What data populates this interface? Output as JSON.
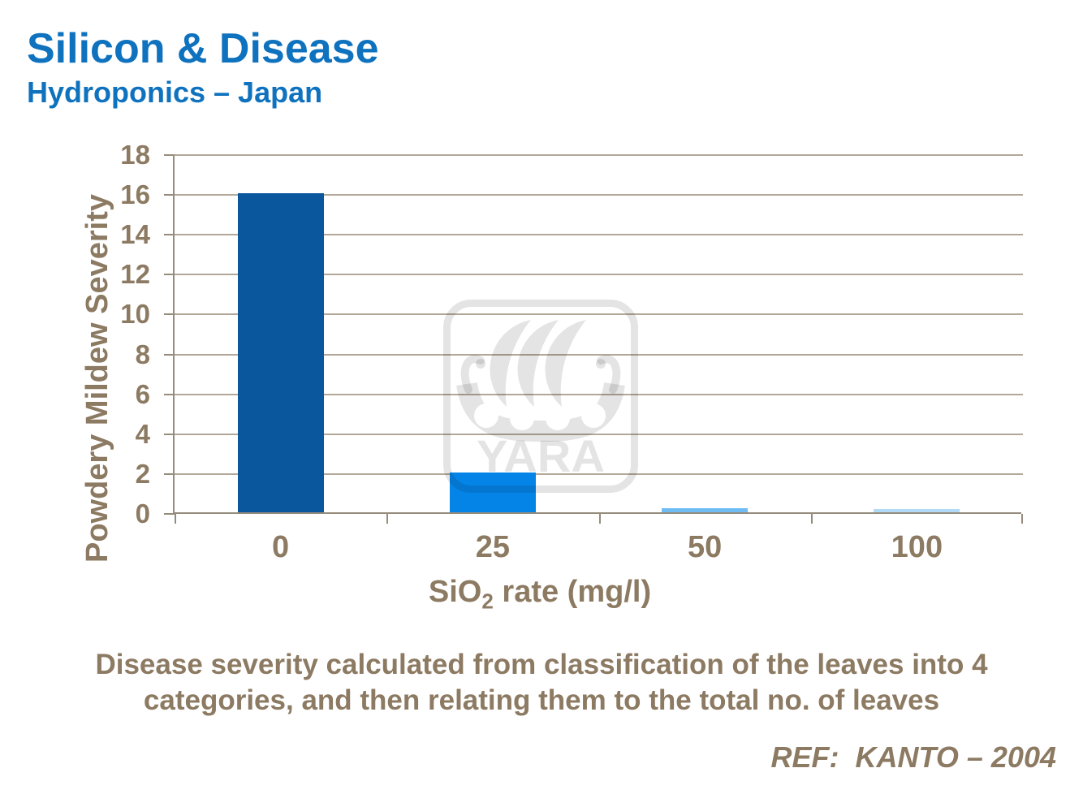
{
  "header": {
    "title": "Silicon & Disease",
    "subtitle": "Hydroponics – Japan"
  },
  "chart_data": {
    "type": "bar",
    "categories": [
      "0",
      "25",
      "50",
      "100"
    ],
    "values": [
      16,
      2,
      0.2,
      0.15
    ],
    "bar_colors": [
      "#0A579E",
      "#0584E8",
      "#6FBCF4",
      "#B2DAF6"
    ],
    "xlabel": "SiO2 rate (mg/l)",
    "xlabel_parts": {
      "prefix": "SiO",
      "sub": "2",
      "suffix": " rate (mg/l)"
    },
    "ylabel": "Powdery Mildew Severity",
    "ylim": [
      0,
      18
    ],
    "ytick_step": 2,
    "grid": "horizontal gridlines on",
    "legend": "none",
    "text_color": "#8C7A62",
    "axis_color": "#968C7C",
    "gridline_color": "#B1A89A"
  },
  "watermark": {
    "text": "YARA"
  },
  "caption": {
    "line1": "Disease severity calculated from classification of the leaves into 4",
    "line2": "categories, and then relating them to the total no. of leaves"
  },
  "reference": {
    "text": "REF:  KANTO – 2004"
  },
  "colors": {
    "heading_blue": "#0F72BE"
  }
}
